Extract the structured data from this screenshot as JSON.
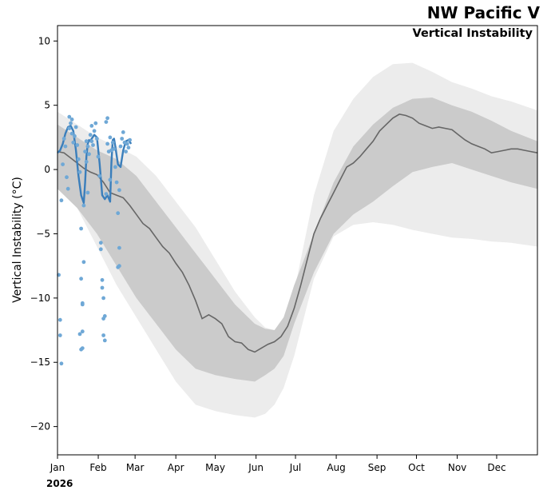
{
  "chart_data": {
    "type": "line",
    "title": "NW Pacific V",
    "subtitle": "Vertical Instability",
    "xlabel": "",
    "ylabel": "Vertical Instability (°C)",
    "year_label": "2026",
    "xlim": [
      0,
      365
    ],
    "ylim": [
      -22.2,
      11.2
    ],
    "yticks": [
      10,
      5,
      0,
      -5,
      -10,
      -15,
      -20
    ],
    "xticks": [
      {
        "label": "Jan",
        "day": 0
      },
      {
        "label": "Feb",
        "day": 31
      },
      {
        "label": "Mar",
        "day": 59
      },
      {
        "label": "Apr",
        "day": 90
      },
      {
        "label": "May",
        "day": 120
      },
      {
        "label": "Jun",
        "day": 151
      },
      {
        "label": "Jul",
        "day": 181
      },
      {
        "label": "Aug",
        "day": 212
      },
      {
        "label": "Sep",
        "day": 243
      },
      {
        "label": "Oct",
        "day": 273
      },
      {
        "label": "Nov",
        "day": 304
      },
      {
        "label": "Dec",
        "day": 334
      }
    ],
    "grid": false,
    "colors": {
      "outer_band": "#ececec",
      "inner_band": "#cbcbcb",
      "median": "#666666",
      "current": "#3a7ebb",
      "members": "#6fa8d6"
    },
    "series": [
      {
        "name": "Climatology outer range",
        "x": [
          0,
          15,
          30,
          45,
          60,
          75,
          90,
          105,
          120,
          135,
          150,
          158,
          165,
          172,
          180,
          195,
          210,
          225,
          240,
          255,
          270,
          285,
          300,
          315,
          330,
          345,
          365
        ],
        "upper": [
          4.5,
          3.5,
          2.5,
          1.8,
          1.0,
          -0.5,
          -2.5,
          -4.5,
          -7.0,
          -9.5,
          -11.5,
          -12.3,
          -12.5,
          -12.0,
          -9.5,
          -2.0,
          3.0,
          5.5,
          7.2,
          8.2,
          8.3,
          7.6,
          6.8,
          6.3,
          5.7,
          5.3,
          4.6
        ],
        "lower": [
          -1.0,
          -3.0,
          -6.0,
          -9.0,
          -11.5,
          -14.0,
          -16.5,
          -18.3,
          -18.8,
          -19.1,
          -19.3,
          -19.0,
          -18.3,
          -17.0,
          -14.5,
          -8.5,
          -5.2,
          -4.3,
          -4.1,
          -4.3,
          -4.7,
          -5.0,
          -5.3,
          -5.4,
          -5.6,
          -5.7,
          -6.0
        ]
      },
      {
        "name": "Climatology inner range",
        "x": [
          0,
          15,
          30,
          45,
          60,
          75,
          90,
          105,
          120,
          135,
          150,
          158,
          165,
          172,
          180,
          195,
          210,
          225,
          240,
          255,
          270,
          285,
          300,
          315,
          330,
          345,
          365
        ],
        "upper": [
          3.5,
          2.5,
          1.5,
          0.8,
          -0.5,
          -2.5,
          -4.5,
          -6.5,
          -8.5,
          -10.5,
          -12.0,
          -12.4,
          -12.5,
          -11.5,
          -9.0,
          -5.0,
          -1.0,
          1.8,
          3.5,
          4.8,
          5.5,
          5.6,
          5.0,
          4.5,
          3.8,
          3.0,
          2.2
        ],
        "lower": [
          -1.5,
          -3.0,
          -5.0,
          -7.5,
          -10.0,
          -12.0,
          -14.0,
          -15.5,
          -16.0,
          -16.3,
          -16.5,
          -16.0,
          -15.5,
          -14.5,
          -12.0,
          -8.0,
          -5.0,
          -3.5,
          -2.5,
          -1.3,
          -0.2,
          0.2,
          0.5,
          0.0,
          -0.5,
          -1.0,
          -1.5
        ]
      },
      {
        "name": "Median",
        "x": [
          0,
          5,
          10,
          15,
          20,
          25,
          30,
          35,
          40,
          45,
          50,
          55,
          60,
          65,
          70,
          75,
          80,
          85,
          90,
          95,
          100,
          105,
          110,
          115,
          120,
          125,
          130,
          135,
          140,
          145,
          150,
          155,
          160,
          165,
          170,
          175,
          180,
          185,
          190,
          195,
          200,
          205,
          210,
          215,
          220,
          225,
          230,
          235,
          240,
          245,
          250,
          255,
          260,
          265,
          270,
          275,
          280,
          285,
          290,
          295,
          300,
          305,
          310,
          315,
          320,
          325,
          330,
          335,
          340,
          345,
          350,
          355,
          360,
          365
        ],
        "values": [
          1.4,
          1.3,
          0.9,
          0.5,
          0.1,
          -0.2,
          -0.4,
          -1.0,
          -1.8,
          -2.0,
          -2.2,
          -2.8,
          -3.5,
          -4.2,
          -4.6,
          -5.3,
          -6.0,
          -6.5,
          -7.3,
          -8.0,
          -9.0,
          -10.2,
          -11.6,
          -11.3,
          -11.6,
          -12.0,
          -13.0,
          -13.4,
          -13.5,
          -14.0,
          -14.2,
          -13.9,
          -13.6,
          -13.4,
          -13.0,
          -12.2,
          -10.8,
          -9.0,
          -7.0,
          -5.0,
          -3.8,
          -2.8,
          -1.8,
          -0.8,
          0.2,
          0.5,
          1.0,
          1.6,
          2.2,
          3.0,
          3.5,
          4.0,
          4.3,
          4.2,
          4.0,
          3.6,
          3.4,
          3.2,
          3.3,
          3.2,
          3.1,
          2.7,
          2.3,
          2.0,
          1.8,
          1.6,
          1.3,
          1.4,
          1.5,
          1.6,
          1.6,
          1.5,
          1.4,
          1.3
        ]
      },
      {
        "name": "2026 current",
        "x": [
          0,
          2,
          4,
          6,
          8,
          10,
          12,
          14,
          16,
          18,
          20,
          21,
          22,
          23,
          24,
          25,
          26,
          28,
          30,
          32,
          34,
          36,
          38,
          40,
          41,
          42,
          43,
          44,
          46,
          48,
          50,
          52,
          54,
          56
        ],
        "values": [
          1.3,
          1.5,
          2.0,
          2.8,
          3.3,
          3.4,
          3.0,
          1.5,
          -0.5,
          -2.0,
          -2.6,
          -1.0,
          1.0,
          2.0,
          2.3,
          2.2,
          2.4,
          2.7,
          2.5,
          0.5,
          -2.0,
          -2.3,
          -2.0,
          -2.5,
          0.5,
          2.3,
          2.4,
          1.8,
          0.4,
          0.2,
          1.5,
          2.2,
          2.3,
          2.0
        ]
      },
      {
        "name": "Ensemble members",
        "type": "scatter",
        "points": [
          [
            1,
            -8.2
          ],
          [
            2,
            -11.7
          ],
          [
            2,
            -12.9
          ],
          [
            3,
            -15.1
          ],
          [
            3,
            -2.4
          ],
          [
            4,
            0.4
          ],
          [
            5,
            2.4
          ],
          [
            6,
            1.8
          ],
          [
            7,
            -0.6
          ],
          [
            8,
            -1.5
          ],
          [
            9,
            4.1
          ],
          [
            9,
            3.2
          ],
          [
            10,
            3.6
          ],
          [
            11,
            2.8
          ],
          [
            11,
            3.9
          ],
          [
            12,
            2.1
          ],
          [
            13,
            2.6
          ],
          [
            14,
            3.3
          ],
          [
            15,
            1.9
          ],
          [
            16,
            0.8
          ],
          [
            17,
            -0.2
          ],
          [
            18,
            -4.6
          ],
          [
            18,
            -8.5
          ],
          [
            19,
            -10.5
          ],
          [
            19,
            -12.6
          ],
          [
            19,
            -13.9
          ],
          [
            20,
            -7.2
          ],
          [
            20,
            -2.8
          ],
          [
            21,
            1.4
          ],
          [
            22,
            2.2
          ],
          [
            22,
            0.6
          ],
          [
            23,
            -1.8
          ],
          [
            24,
            1.2
          ],
          [
            25,
            2.7
          ],
          [
            26,
            3.4
          ],
          [
            26,
            2.2
          ],
          [
            27,
            1.9
          ],
          [
            28,
            3.0
          ],
          [
            29,
            3.6
          ],
          [
            30,
            2.4
          ],
          [
            31,
            1.0
          ],
          [
            32,
            -0.5
          ],
          [
            33,
            -5.7
          ],
          [
            34,
            -8.6
          ],
          [
            34,
            -9.2
          ],
          [
            35,
            -10.0
          ],
          [
            35,
            -11.6
          ],
          [
            35,
            -12.9
          ],
          [
            36,
            -13.3
          ],
          [
            37,
            -1.9
          ],
          [
            37,
            3.7
          ],
          [
            38,
            4.0
          ],
          [
            38,
            2.0
          ],
          [
            39,
            1.4
          ],
          [
            40,
            -0.8
          ],
          [
            40,
            2.5
          ],
          [
            41,
            1.5
          ],
          [
            42,
            2.1
          ],
          [
            43,
            1.6
          ],
          [
            44,
            0.2
          ],
          [
            45,
            -1.0
          ],
          [
            46,
            -3.4
          ],
          [
            46,
            -7.6
          ],
          [
            47,
            -6.1
          ],
          [
            47,
            -1.6
          ],
          [
            48,
            1.8
          ],
          [
            49,
            2.4
          ],
          [
            50,
            2.9
          ],
          [
            51,
            2.1
          ],
          [
            52,
            1.4
          ],
          [
            53,
            2.0
          ],
          [
            54,
            1.7
          ],
          [
            55,
            2.3
          ],
          [
            17,
            -12.8
          ],
          [
            18,
            -14.0
          ],
          [
            19,
            -10.4
          ],
          [
            36,
            -11.4
          ],
          [
            33,
            -6.2
          ],
          [
            47,
            -7.5
          ],
          [
            23,
            1.8
          ]
        ]
      }
    ]
  }
}
